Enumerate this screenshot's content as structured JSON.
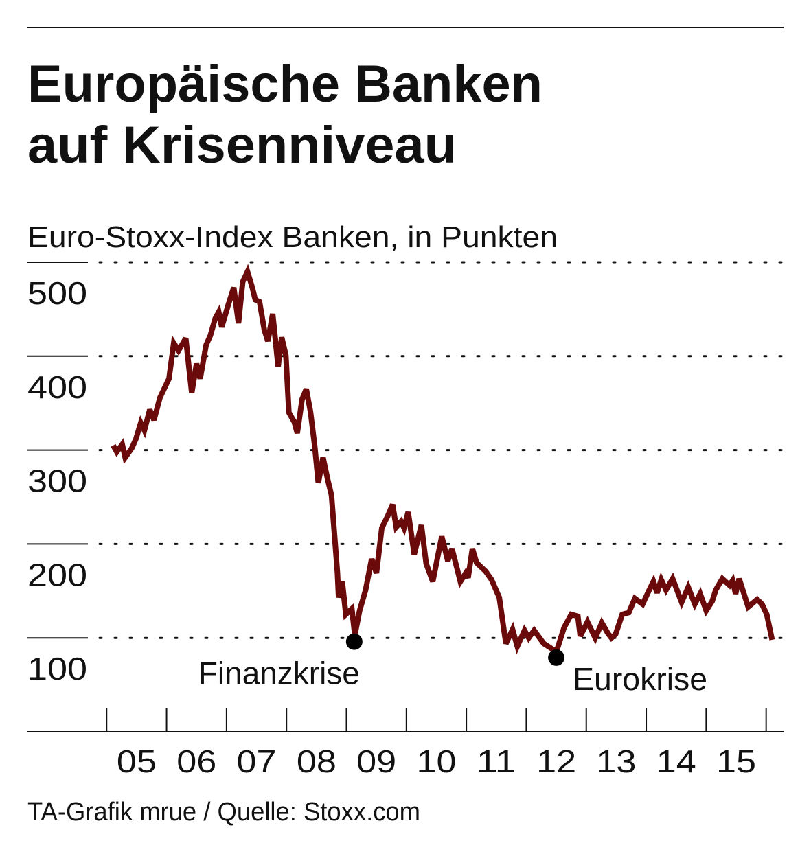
{
  "chart_data": {
    "type": "line",
    "title": [
      "Europäische Banken",
      "auf Krisenniveau"
    ],
    "subtitle": "Euro-Stoxx-Index Banken, in Punkten",
    "source": "TA-Grafik mrue / Quelle: Stoxx.com",
    "xlim": [
      2003.68,
      2016.29
    ],
    "ylim": [
      0,
      500
    ],
    "yticks": [
      100,
      200,
      300,
      400,
      500
    ],
    "xticks": [
      {
        "value": 2005,
        "label": "05"
      },
      {
        "value": 2006,
        "label": "06"
      },
      {
        "value": 2007,
        "label": "07"
      },
      {
        "value": 2008,
        "label": "08"
      },
      {
        "value": 2009,
        "label": "09"
      },
      {
        "value": 2010,
        "label": "10"
      },
      {
        "value": 2011,
        "label": "11"
      },
      {
        "value": 2012,
        "label": "12"
      },
      {
        "value": 2013,
        "label": "13"
      },
      {
        "value": 2014,
        "label": "14"
      },
      {
        "value": 2015,
        "label": "15"
      }
    ],
    "grid": true,
    "series": [
      {
        "color": "#6b0a0a",
        "x": [
          2005.11,
          2005.17,
          2005.26,
          2005.31,
          2005.42,
          2005.49,
          2005.57,
          2005.63,
          2005.72,
          2005.79,
          2005.89,
          2006.04,
          2006.12,
          2006.2,
          2006.32,
          2006.42,
          2006.5,
          2006.56,
          2006.66,
          2006.73,
          2006.81,
          2006.87,
          2006.92,
          2007.03,
          2007.12,
          2007.2,
          2007.27,
          2007.35,
          2007.43,
          2007.48,
          2007.55,
          2007.63,
          2007.69,
          2007.77,
          2007.86,
          2007.92,
          2007.99,
          2008.04,
          2008.13,
          2008.18,
          2008.26,
          2008.33,
          2008.4,
          2008.47,
          2008.53,
          2008.61,
          2008.69,
          2008.75,
          2008.85,
          2008.87,
          2008.93,
          2008.99,
          2009.09,
          2009.14,
          2009.22,
          2009.32,
          2009.42,
          2009.5,
          2009.59,
          2009.69,
          2009.77,
          2009.83,
          2009.91,
          2009.96,
          2010.03,
          2010.13,
          2010.25,
          2010.33,
          2010.44,
          2010.59,
          2010.69,
          2010.76,
          2010.9,
          2010.99,
          2011.03,
          2011.1,
          2011.17,
          2011.32,
          2011.42,
          2011.55,
          2011.66,
          2011.77,
          2011.85,
          2011.97,
          2012.04,
          2012.13,
          2012.29,
          2012.39,
          2012.5,
          2012.63,
          2012.75,
          2012.86,
          2012.9,
          2013.02,
          2013.15,
          2013.26,
          2013.36,
          2013.42,
          2013.49,
          2013.6,
          2013.71,
          2013.81,
          2013.94,
          2014.05,
          2014.12,
          2014.18,
          2014.25,
          2014.33,
          2014.44,
          2014.59,
          2014.7,
          2014.81,
          2014.9,
          2015.0,
          2015.1,
          2015.16,
          2015.27,
          2015.39,
          2015.44,
          2015.49,
          2015.55,
          2015.7,
          2015.85,
          2015.93,
          2016.01,
          2016.1
        ],
        "values": [
          305,
          298,
          306,
          292,
          302,
          312,
          329,
          321,
          343,
          332,
          356,
          376,
          414,
          406,
          419,
          361,
          392,
          376,
          412,
          422,
          440,
          447,
          431,
          455,
          473,
          435,
          479,
          490,
          473,
          460,
          458,
          428,
          416,
          445,
          389,
          420,
          401,
          340,
          330,
          318,
          354,
          365,
          341,
          305,
          265,
          292,
          268,
          252,
          169,
          143,
          160,
          125,
          131,
          103,
          129,
          151,
          184,
          169,
          217,
          230,
          242,
          218,
          224,
          217,
          234,
          189,
          220,
          179,
          160,
          208,
          182,
          195,
          160,
          169,
          164,
          195,
          180,
          171,
          162,
          143,
          94,
          109,
          91,
          108,
          100,
          108,
          94,
          90,
          85,
          111,
          125,
          123,
          102,
          117,
          100,
          116,
          105,
          100,
          104,
          125,
          127,
          142,
          136,
          151,
          160,
          148,
          162,
          151,
          163,
          138,
          154,
          136,
          147,
          129,
          139,
          151,
          163,
          156,
          161,
          147,
          163,
          133,
          141,
          136,
          125,
          98
        ]
      }
    ],
    "annotations": [
      {
        "text": "Finanzkrise",
        "x": 2009.13,
        "y": 96
      },
      {
        "text": "Eurokrise",
        "x": 2012.5,
        "y": 79
      }
    ]
  }
}
